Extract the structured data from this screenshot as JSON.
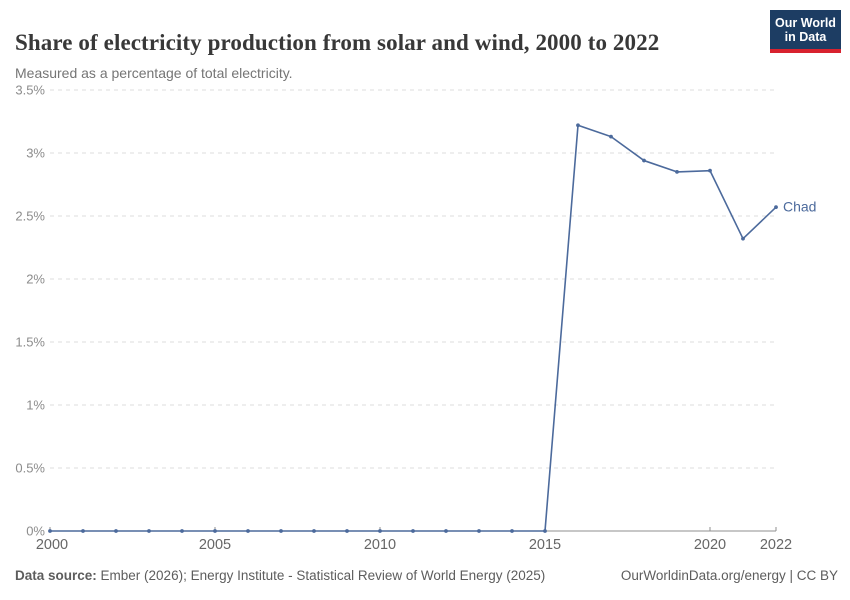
{
  "logo": {
    "line1": "Our World",
    "line2": "in Data"
  },
  "chart_data": {
    "type": "line",
    "title": "Share of electricity production from solar and wind, 2000 to 2022",
    "subtitle": "Measured as a percentage of total electricity.",
    "xlabel": "",
    "ylabel": "",
    "xlim": [
      2000,
      2022
    ],
    "ylim": [
      0,
      3.5
    ],
    "grid": "horizontal-dashed",
    "legend_position": "end-of-line-label",
    "xticks": [
      2000,
      2005,
      2010,
      2015,
      2020,
      2022
    ],
    "yticks": [
      {
        "value": 0,
        "label": "0%"
      },
      {
        "value": 0.5,
        "label": "0.5%"
      },
      {
        "value": 1,
        "label": "1%"
      },
      {
        "value": 1.5,
        "label": "1.5%"
      },
      {
        "value": 2,
        "label": "2%"
      },
      {
        "value": 2.5,
        "label": "2.5%"
      },
      {
        "value": 3,
        "label": "3%"
      },
      {
        "value": 3.5,
        "label": "3.5%"
      }
    ],
    "series": [
      {
        "name": "Chad",
        "color": "#4c6a9c",
        "x": [
          2000,
          2001,
          2002,
          2003,
          2004,
          2005,
          2006,
          2007,
          2008,
          2009,
          2010,
          2011,
          2012,
          2013,
          2014,
          2015,
          2016,
          2017,
          2018,
          2019,
          2020,
          2021,
          2022
        ],
        "values": [
          0,
          0,
          0,
          0,
          0,
          0,
          0,
          0,
          0,
          0,
          0,
          0,
          0,
          0,
          0,
          0,
          3.22,
          3.13,
          2.94,
          2.85,
          2.86,
          2.32,
          2.57
        ]
      }
    ]
  },
  "footer": {
    "source_label": "Data source:",
    "source_text": " Ember (2026); Energy Institute - Statistical Review of World Energy (2025)",
    "credit": "OurWorldinData.org/energy | CC BY"
  },
  "colors": {
    "line": "#4c6a9c",
    "logo_navy": "#1d3d63",
    "logo_red": "#d8222f",
    "gridline": "#dcdcdc",
    "axis": "#8f8f8f"
  }
}
